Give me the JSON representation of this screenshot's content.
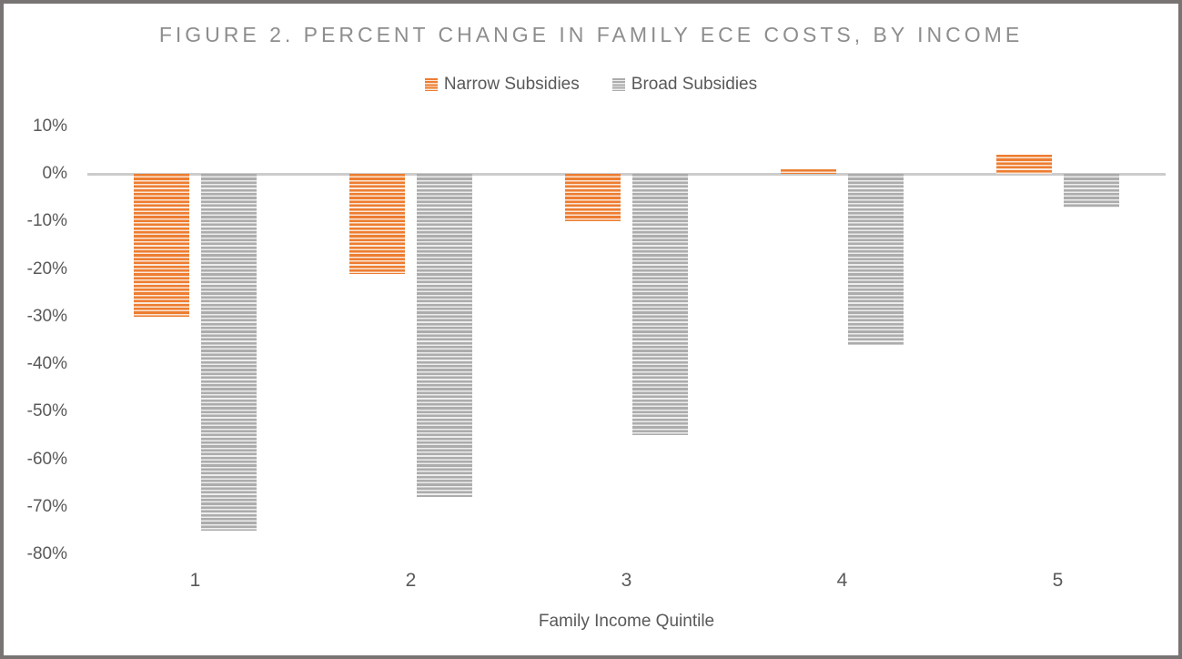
{
  "title": "FIGURE 2. PERCENT CHANGE IN FAMILY ECE COSTS, BY INCOME",
  "chart_data": {
    "type": "bar",
    "categories": [
      "1",
      "2",
      "3",
      "4",
      "5"
    ],
    "series": [
      {
        "name": "Narrow Subsidies",
        "color": "#ED7D31",
        "stripe_light": "#FAE7D8",
        "values": [
          -30,
          -21,
          -10,
          1,
          4
        ]
      },
      {
        "name": "Broad Subsidies",
        "color": "#ACACAC",
        "stripe_light": "#EDEDED",
        "values": [
          -75,
          -68,
          -55,
          -36,
          -7
        ]
      }
    ],
    "title": "FIGURE 2. PERCENT CHANGE IN FAMILY ECE COSTS, BY INCOME",
    "xlabel": "Family Income Quintile",
    "ylabel": "",
    "ylim": [
      -80,
      10
    ],
    "ytick_step": 10,
    "ytick_labels": [
      "10%",
      "0%",
      "-10%",
      "-20%",
      "-30%",
      "-40%",
      "-50%",
      "-60%",
      "-70%",
      "-80%"
    ],
    "legend_position": "top",
    "grid": false
  },
  "colors": {
    "title_text": "#8D8D8D",
    "axis_text": "#595959",
    "zero_line": "#CCCCCC",
    "frame_border": "#787473",
    "background": "#FFFFFF"
  }
}
